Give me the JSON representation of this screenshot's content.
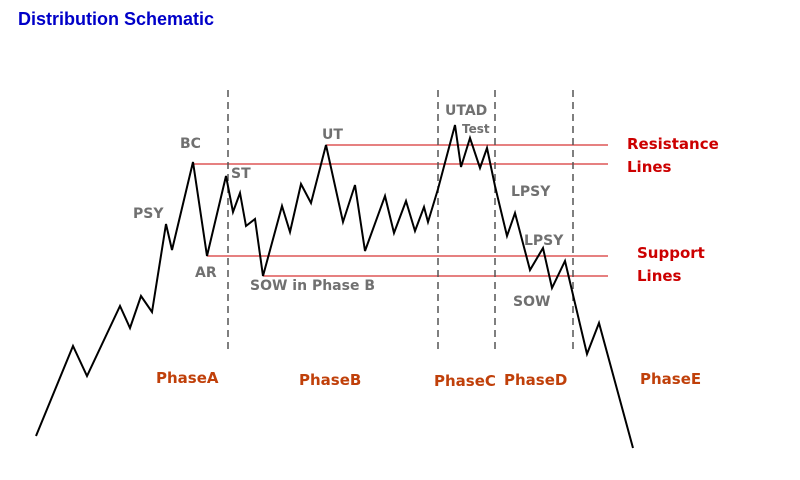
{
  "title": "Distribution Schematic",
  "colors": {
    "title": "#0000c8",
    "event_label": "#707070",
    "phase_label": "#c0400a",
    "side_label": "#cc0000",
    "price_line": "#000000",
    "level_line": "#cc0000",
    "divider": "#555555"
  },
  "events": {
    "psy": "PSY",
    "bc": "BC",
    "ar": "AR",
    "st": "ST",
    "ut": "UT",
    "sow_b": "SOW in Phase B",
    "utad": "UTAD",
    "test": "Test",
    "lpsy_1": "LPSY",
    "lpsy_2": "LPSY",
    "sow": "SOW"
  },
  "phases": {
    "a": "PhaseA",
    "b": "PhaseB",
    "c": "PhaseC",
    "d": "PhaseD",
    "e": "PhaseE"
  },
  "side_labels": {
    "resistance_1": "Resistance",
    "resistance_2": "Lines",
    "support_1": "Support",
    "support_2": "Lines"
  }
}
